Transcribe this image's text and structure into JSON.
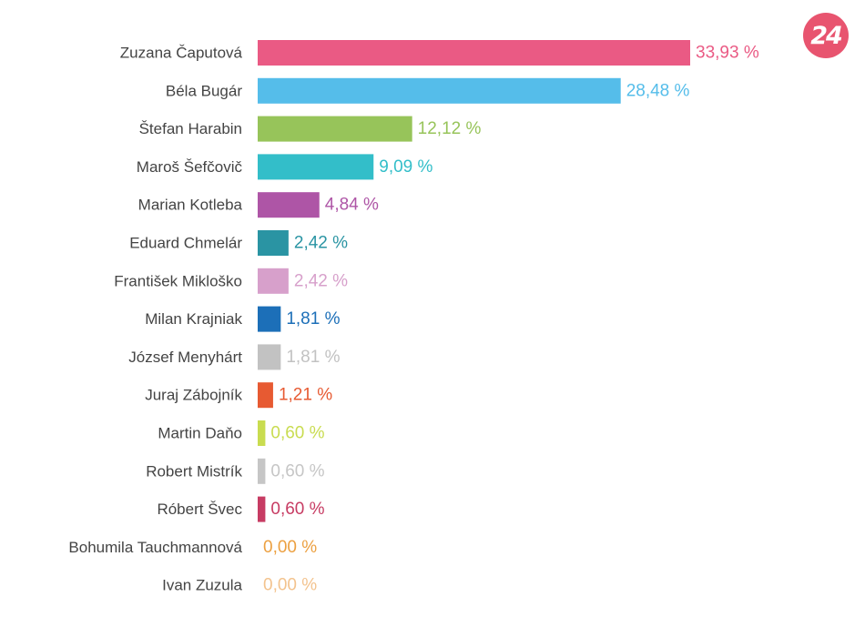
{
  "logo": {
    "text": "24",
    "color": "#e8546f"
  },
  "chart_data": {
    "type": "bar",
    "orientation": "horizontal",
    "title": "",
    "xlabel": "",
    "ylabel": "",
    "xlim": [
      0,
      33.93
    ],
    "grid": false,
    "legend": "none",
    "value_suffix": " %",
    "categories": [
      "Zuzana Čaputová",
      "Béla Bugár",
      "Štefan Harabin",
      "Maroš Šefčovič",
      "Marian Kotleba",
      "Eduard Chmelár",
      "František Mikloško",
      "Milan Krajniak",
      "József Menyhárt",
      "Juraj Zábojník",
      "Martin Daňo",
      "Robert Mistrík",
      "Róbert Švec",
      "Bohumila Tauchmannová",
      "Ivan Zuzula"
    ],
    "values": [
      33.93,
      28.48,
      12.12,
      9.09,
      4.84,
      2.42,
      2.42,
      1.81,
      1.81,
      1.21,
      0.6,
      0.6,
      0.6,
      0.0,
      0.0
    ],
    "value_labels": [
      "33,93 %",
      "28,48 %",
      "12,12 %",
      "9,09 %",
      "4,84 %",
      "2,42 %",
      "2,42 %",
      "1,81 %",
      "1,81 %",
      "1,21 %",
      "0,60 %",
      "0,60 %",
      "0,60 %",
      "0,00 %",
      "0,00 %"
    ],
    "colors": [
      "#ea5a84",
      "#55bdea",
      "#97c45a",
      "#33bec9",
      "#ae55a6",
      "#2a94a3",
      "#d7a0cb",
      "#1c6fb8",
      "#c2c2c2",
      "#e75a32",
      "#c9dc50",
      "#c6c6c6",
      "#c73c63",
      "#eca041",
      "#f3c38e"
    ]
  }
}
